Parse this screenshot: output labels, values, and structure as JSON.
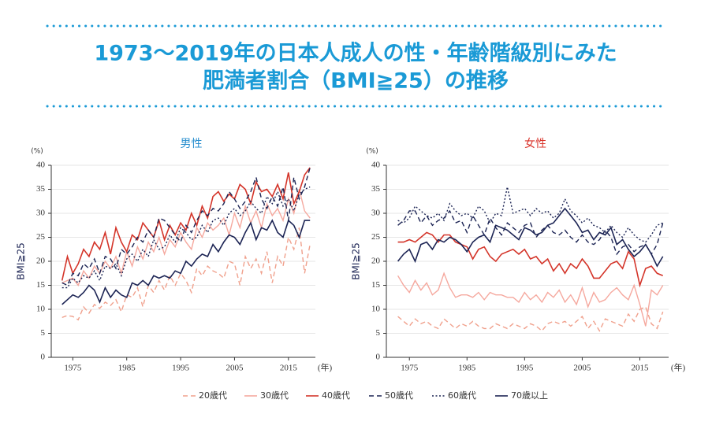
{
  "header": {
    "title_line1": "1973～2019年の日本人成人の性・年齢階級別にみた",
    "title_line2": "肥満者割合（BMI≧25）の推移"
  },
  "chart_data": [
    {
      "type": "line",
      "title": "男性",
      "title_color": "#2a8fcf",
      "y_label": "BMI≧25",
      "y_unit": "(%)",
      "x_unit": "(年)",
      "x": [
        1973,
        1974,
        1975,
        1976,
        1977,
        1978,
        1979,
        1980,
        1981,
        1982,
        1983,
        1984,
        1985,
        1986,
        1987,
        1988,
        1989,
        1990,
        1991,
        1992,
        1993,
        1994,
        1995,
        1996,
        1997,
        1998,
        1999,
        2000,
        2001,
        2002,
        2003,
        2004,
        2005,
        2006,
        2007,
        2008,
        2009,
        2010,
        2011,
        2012,
        2013,
        2014,
        2015,
        2016,
        2017,
        2018,
        2019
      ],
      "xlim": [
        1971,
        2020
      ],
      "xticks": [
        1975,
        1985,
        1995,
        2005,
        2015
      ],
      "ylim": [
        0,
        40
      ],
      "yticks": [
        0,
        5,
        10,
        15,
        20,
        25,
        30,
        35,
        40
      ],
      "grid": true,
      "series": [
        {
          "name": "20歳代",
          "color": "#f0a08c",
          "style": "dashed",
          "values": [
            8.3,
            8.7,
            8.5,
            7.8,
            10.5,
            9.2,
            11.0,
            10.2,
            11.5,
            10.8,
            12.0,
            9.5,
            13.0,
            12.5,
            14.5,
            10.5,
            15.0,
            13.5,
            16.0,
            14.0,
            17.0,
            15.0,
            17.5,
            16.0,
            13.5,
            18.5,
            17.0,
            19.0,
            18.0,
            17.5,
            16.5,
            20.0,
            19.5,
            15.0,
            21.0,
            18.5,
            20.5,
            17.5,
            22.0,
            15.5,
            21.0,
            19.0,
            25.0,
            22.5,
            27.0,
            17.5,
            23.5
          ]
        },
        {
          "name": "30歳代",
          "color": "#f5a89e",
          "style": "solid",
          "values": [
            15.5,
            16.0,
            16.5,
            15.0,
            18.0,
            16.5,
            19.0,
            17.5,
            20.0,
            18.5,
            21.0,
            17.5,
            22.0,
            19.0,
            23.0,
            20.5,
            24.0,
            22.0,
            25.0,
            21.5,
            24.5,
            23.0,
            26.0,
            24.0,
            22.5,
            27.0,
            25.0,
            28.0,
            26.5,
            27.5,
            29.0,
            25.5,
            30.0,
            27.0,
            31.5,
            28.0,
            30.5,
            27.0,
            32.0,
            29.5,
            31.0,
            28.5,
            33.0,
            30.0,
            35.0,
            30.5,
            29.0
          ]
        },
        {
          "name": "40歳代",
          "color": "#d4352a",
          "style": "solid",
          "values": [
            16.0,
            21.0,
            17.5,
            19.5,
            22.5,
            21.0,
            24.0,
            22.5,
            26.0,
            21.5,
            27.0,
            24.0,
            22.0,
            25.5,
            24.5,
            28.0,
            26.5,
            25.0,
            28.5,
            24.5,
            27.5,
            25.5,
            28.0,
            26.5,
            30.0,
            27.5,
            31.5,
            29.0,
            33.5,
            34.5,
            32.5,
            34.0,
            33.0,
            36.0,
            35.0,
            32.0,
            36.5,
            34.5,
            35.0,
            33.5,
            36.0,
            33.0,
            38.5,
            32.0,
            34.5,
            38.0,
            39.5
          ]
        },
        {
          "name": "50歳代",
          "color": "#1c2454",
          "style": "dashed",
          "values": [
            15.5,
            15.0,
            17.5,
            17.0,
            19.5,
            18.5,
            20.5,
            17.5,
            21.0,
            20.5,
            18.5,
            22.5,
            21.5,
            23.0,
            25.0,
            24.0,
            26.5,
            25.0,
            29.0,
            28.5,
            27.0,
            25.5,
            24.0,
            27.5,
            26.0,
            28.5,
            30.5,
            29.5,
            31.0,
            30.5,
            32.0,
            34.5,
            33.0,
            31.0,
            32.5,
            34.5,
            37.5,
            33.0,
            31.0,
            33.5,
            31.5,
            35.5,
            28.5,
            37.5,
            33.0,
            35.5,
            39.5
          ]
        },
        {
          "name": "60歳代",
          "color": "#1c2454",
          "style": "dotted",
          "values": [
            14.5,
            14.5,
            16.5,
            15.5,
            17.0,
            16.5,
            18.0,
            16.0,
            19.0,
            18.5,
            19.5,
            17.0,
            20.5,
            21.5,
            20.0,
            22.5,
            21.0,
            24.5,
            22.5,
            23.0,
            25.5,
            24.0,
            27.0,
            26.0,
            24.5,
            25.0,
            27.5,
            26.0,
            28.5,
            29.0,
            27.5,
            30.0,
            31.0,
            29.5,
            30.5,
            32.5,
            31.0,
            30.0,
            33.5,
            32.0,
            34.5,
            31.5,
            33.0,
            30.5,
            34.0,
            35.0,
            35.5
          ]
        },
        {
          "name": "70歳以上",
          "color": "#1c2454",
          "style": "solid",
          "values": [
            11.0,
            12.0,
            13.0,
            12.5,
            13.5,
            15.0,
            14.0,
            11.5,
            14.5,
            12.5,
            14.0,
            13.0,
            12.5,
            15.5,
            15.0,
            16.0,
            15.0,
            17.0,
            16.5,
            17.0,
            16.5,
            18.0,
            17.5,
            20.0,
            19.0,
            20.5,
            21.5,
            21.0,
            23.5,
            22.0,
            24.0,
            25.5,
            25.0,
            23.5,
            26.0,
            28.0,
            24.5,
            27.0,
            26.5,
            28.5,
            26.0,
            25.0,
            28.5,
            27.5,
            25.0,
            28.5,
            28.5
          ]
        }
      ]
    },
    {
      "type": "line",
      "title": "女性",
      "title_color": "#d9332a",
      "y_label": "BMI≧25",
      "y_unit": "(%)",
      "x_unit": "(年)",
      "x": [
        1973,
        1974,
        1975,
        1976,
        1977,
        1978,
        1979,
        1980,
        1981,
        1982,
        1983,
        1984,
        1985,
        1986,
        1987,
        1988,
        1989,
        1990,
        1991,
        1992,
        1993,
        1994,
        1995,
        1996,
        1997,
        1998,
        1999,
        2000,
        2001,
        2002,
        2003,
        2004,
        2005,
        2006,
        2007,
        2008,
        2009,
        2010,
        2011,
        2012,
        2013,
        2014,
        2015,
        2016,
        2017,
        2018,
        2019
      ],
      "xlim": [
        1971,
        2020
      ],
      "xticks": [
        1975,
        1985,
        1995,
        2005,
        2015
      ],
      "ylim": [
        0,
        40
      ],
      "yticks": [
        0,
        5,
        10,
        15,
        20,
        25,
        30,
        35,
        40
      ],
      "grid": true,
      "series": [
        {
          "color": "#f0a08c",
          "style": "dashed",
          "values": [
            8.5,
            7.5,
            6.5,
            8.0,
            7.0,
            7.5,
            6.5,
            6.0,
            8.0,
            7.0,
            6.0,
            7.0,
            6.5,
            7.5,
            6.5,
            6.0,
            6.0,
            7.0,
            6.5,
            6.0,
            7.0,
            6.5,
            6.0,
            7.0,
            6.5,
            5.5,
            7.0,
            7.5,
            7.0,
            7.5,
            6.5,
            7.5,
            8.5,
            6.0,
            7.5,
            5.5,
            8.0,
            7.5,
            7.0,
            6.5,
            9.0,
            7.5,
            10.0,
            10.5,
            7.0,
            6.0,
            9.5
          ]
        },
        {
          "color": "#f5a89e",
          "style": "solid",
          "values": [
            17.0,
            15.0,
            13.5,
            16.0,
            14.0,
            15.5,
            13.0,
            14.0,
            17.5,
            14.5,
            12.5,
            13.0,
            13.0,
            12.5,
            13.5,
            12.0,
            13.5,
            13.0,
            13.0,
            12.5,
            12.5,
            11.5,
            13.5,
            12.0,
            13.0,
            11.5,
            13.5,
            12.5,
            14.0,
            11.5,
            13.0,
            11.0,
            14.5,
            10.5,
            13.5,
            11.5,
            12.0,
            13.5,
            14.5,
            13.0,
            12.0,
            15.0,
            11.0,
            6.5,
            14.0,
            13.0,
            15.0
          ]
        },
        {
          "color": "#d4352a",
          "style": "solid",
          "values": [
            24.0,
            24.0,
            24.5,
            24.0,
            25.0,
            26.0,
            25.5,
            24.0,
            25.5,
            25.5,
            24.0,
            23.5,
            23.0,
            20.5,
            22.5,
            23.0,
            21.0,
            20.0,
            21.5,
            22.0,
            22.5,
            21.5,
            22.5,
            20.5,
            21.0,
            19.5,
            20.5,
            18.0,
            19.5,
            17.5,
            19.5,
            18.5,
            20.5,
            19.0,
            16.5,
            16.5,
            18.0,
            19.5,
            20.0,
            18.5,
            22.0,
            20.5,
            15.0,
            18.5,
            19.0,
            17.5,
            17.0
          ]
        },
        {
          "color": "#1c2454",
          "style": "dashed",
          "values": [
            27.5,
            28.5,
            30.5,
            30.5,
            28.0,
            29.5,
            27.5,
            28.5,
            29.0,
            30.5,
            28.0,
            28.5,
            26.0,
            29.5,
            27.5,
            25.5,
            29.0,
            27.0,
            25.5,
            28.0,
            27.0,
            26.0,
            27.5,
            28.0,
            25.0,
            26.5,
            27.5,
            26.0,
            25.5,
            26.5,
            25.0,
            24.0,
            25.5,
            24.0,
            23.5,
            24.5,
            26.5,
            25.0,
            21.5,
            23.0,
            23.5,
            22.0,
            23.0,
            23.5,
            21.5,
            23.5,
            28.0
          ]
        },
        {
          "color": "#1c2454",
          "style": "dotted",
          "values": [
            28.5,
            28.0,
            29.0,
            31.5,
            30.5,
            29.5,
            29.0,
            30.0,
            28.5,
            32.0,
            30.5,
            29.5,
            30.0,
            29.0,
            31.5,
            30.5,
            28.0,
            30.0,
            29.5,
            35.5,
            30.0,
            30.5,
            31.0,
            29.5,
            31.0,
            30.0,
            30.5,
            29.0,
            30.0,
            33.0,
            30.5,
            29.5,
            28.0,
            29.0,
            27.5,
            27.0,
            26.0,
            27.5,
            26.0,
            25.0,
            27.0,
            25.5,
            24.5,
            24.0,
            25.5,
            27.5,
            28.0
          ]
        },
        {
          "color": "#1c2454",
          "style": "solid",
          "values": [
            20.0,
            21.5,
            22.5,
            20.0,
            23.5,
            24.0,
            22.5,
            24.5,
            24.0,
            25.0,
            24.5,
            23.5,
            22.0,
            24.0,
            25.0,
            25.5,
            24.0,
            27.5,
            27.0,
            26.5,
            25.5,
            24.5,
            27.0,
            26.5,
            25.5,
            26.0,
            27.5,
            28.0,
            29.5,
            31.0,
            29.5,
            28.0,
            26.0,
            26.5,
            24.5,
            26.0,
            25.5,
            27.0,
            23.5,
            24.5,
            22.5,
            21.0,
            22.0,
            23.5,
            21.5,
            19.0,
            21.0
          ]
        }
      ]
    }
  ]
}
